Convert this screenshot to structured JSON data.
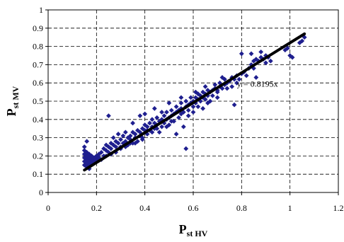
{
  "chart_data": {
    "type": "scatter",
    "xlabel": {
      "main": "P",
      "sub": "st HV"
    },
    "ylabel": {
      "main": "P",
      "sub": "st MV"
    },
    "xlim": [
      0,
      1.2
    ],
    "ylim": [
      0,
      1
    ],
    "x_ticks": [
      "0",
      "0.2",
      "0.4",
      "0.6",
      "0.8",
      "1",
      "1.2"
    ],
    "y_ticks": [
      "0",
      "0.1",
      "0.2",
      "0.3",
      "0.4",
      "0.5",
      "0.6",
      "0.7",
      "0.8",
      "0.9",
      "1"
    ],
    "grid": "dashed",
    "marker_color": "#1f1f8f",
    "trendline": {
      "label": "y = 0.8195x",
      "slope": 0.8195,
      "x_range": [
        0.15,
        1.06
      ],
      "color": "#000000"
    },
    "points": [
      [
        0.15,
        0.15
      ],
      [
        0.15,
        0.17
      ],
      [
        0.15,
        0.19
      ],
      [
        0.15,
        0.21
      ],
      [
        0.16,
        0.14
      ],
      [
        0.16,
        0.16
      ],
      [
        0.16,
        0.18
      ],
      [
        0.16,
        0.2
      ],
      [
        0.16,
        0.22
      ],
      [
        0.17,
        0.15
      ],
      [
        0.17,
        0.17
      ],
      [
        0.17,
        0.19
      ],
      [
        0.17,
        0.13
      ],
      [
        0.18,
        0.16
      ],
      [
        0.18,
        0.18
      ],
      [
        0.18,
        0.2
      ],
      [
        0.15,
        0.23
      ],
      [
        0.15,
        0.25
      ],
      [
        0.16,
        0.28
      ],
      [
        0.17,
        0.21
      ],
      [
        0.19,
        0.17
      ],
      [
        0.19,
        0.19
      ],
      [
        0.2,
        0.18
      ],
      [
        0.2,
        0.2
      ],
      [
        0.21,
        0.21
      ],
      [
        0.21,
        0.19
      ],
      [
        0.22,
        0.22
      ],
      [
        0.22,
        0.18
      ],
      [
        0.23,
        0.24
      ],
      [
        0.23,
        0.2
      ],
      [
        0.24,
        0.23
      ],
      [
        0.24,
        0.26
      ],
      [
        0.25,
        0.22
      ],
      [
        0.25,
        0.25
      ],
      [
        0.25,
        0.42
      ],
      [
        0.26,
        0.27
      ],
      [
        0.26,
        0.24
      ],
      [
        0.27,
        0.26
      ],
      [
        0.27,
        0.3
      ],
      [
        0.28,
        0.25
      ],
      [
        0.28,
        0.28
      ],
      [
        0.29,
        0.27
      ],
      [
        0.29,
        0.32
      ],
      [
        0.3,
        0.24
      ],
      [
        0.3,
        0.29
      ],
      [
        0.31,
        0.27
      ],
      [
        0.31,
        0.31
      ],
      [
        0.32,
        0.28
      ],
      [
        0.32,
        0.33
      ],
      [
        0.33,
        0.3
      ],
      [
        0.33,
        0.26
      ],
      [
        0.34,
        0.31
      ],
      [
        0.34,
        0.29
      ],
      [
        0.35,
        0.27
      ],
      [
        0.35,
        0.33
      ],
      [
        0.35,
        0.38
      ],
      [
        0.36,
        0.3
      ],
      [
        0.36,
        0.32
      ],
      [
        0.37,
        0.34
      ],
      [
        0.37,
        0.28
      ],
      [
        0.38,
        0.33
      ],
      [
        0.38,
        0.31
      ],
      [
        0.38,
        0.42
      ],
      [
        0.39,
        0.35
      ],
      [
        0.39,
        0.3
      ],
      [
        0.4,
        0.34
      ],
      [
        0.4,
        0.37
      ],
      [
        0.4,
        0.43
      ],
      [
        0.41,
        0.32
      ],
      [
        0.41,
        0.36
      ],
      [
        0.42,
        0.38
      ],
      [
        0.42,
        0.34
      ],
      [
        0.43,
        0.36
      ],
      [
        0.43,
        0.4
      ],
      [
        0.44,
        0.35
      ],
      [
        0.44,
        0.38
      ],
      [
        0.44,
        0.46
      ],
      [
        0.45,
        0.37
      ],
      [
        0.45,
        0.41
      ],
      [
        0.46,
        0.39
      ],
      [
        0.46,
        0.33
      ],
      [
        0.47,
        0.4
      ],
      [
        0.47,
        0.36
      ],
      [
        0.48,
        0.42
      ],
      [
        0.48,
        0.38
      ],
      [
        0.49,
        0.4
      ],
      [
        0.49,
        0.44
      ],
      [
        0.5,
        0.41
      ],
      [
        0.5,
        0.37
      ],
      [
        0.5,
        0.49
      ],
      [
        0.51,
        0.42
      ],
      [
        0.51,
        0.45
      ],
      [
        0.52,
        0.43
      ],
      [
        0.52,
        0.39
      ],
      [
        0.53,
        0.44
      ],
      [
        0.53,
        0.47
      ],
      [
        0.53,
        0.32
      ],
      [
        0.54,
        0.45
      ],
      [
        0.54,
        0.41
      ],
      [
        0.55,
        0.46
      ],
      [
        0.55,
        0.49
      ],
      [
        0.56,
        0.44
      ],
      [
        0.56,
        0.36
      ],
      [
        0.57,
        0.47
      ],
      [
        0.57,
        0.5
      ],
      [
        0.57,
        0.24
      ],
      [
        0.58,
        0.48
      ],
      [
        0.58,
        0.45
      ],
      [
        0.59,
        0.49
      ],
      [
        0.59,
        0.52
      ],
      [
        0.6,
        0.47
      ],
      [
        0.6,
        0.5
      ],
      [
        0.6,
        0.44
      ],
      [
        0.61,
        0.52
      ],
      [
        0.61,
        0.49
      ],
      [
        0.62,
        0.51
      ],
      [
        0.62,
        0.54
      ],
      [
        0.63,
        0.5
      ],
      [
        0.63,
        0.53
      ],
      [
        0.64,
        0.52
      ],
      [
        0.64,
        0.55
      ],
      [
        0.64,
        0.46
      ],
      [
        0.65,
        0.54
      ],
      [
        0.65,
        0.51
      ],
      [
        0.66,
        0.53
      ],
      [
        0.66,
        0.56
      ],
      [
        0.67,
        0.55
      ],
      [
        0.67,
        0.5
      ],
      [
        0.68,
        0.56
      ],
      [
        0.68,
        0.53
      ],
      [
        0.69,
        0.57
      ],
      [
        0.69,
        0.59
      ],
      [
        0.7,
        0.56
      ],
      [
        0.7,
        0.52
      ],
      [
        0.71,
        0.58
      ],
      [
        0.71,
        0.6
      ],
      [
        0.72,
        0.57
      ],
      [
        0.73,
        0.59
      ],
      [
        0.73,
        0.62
      ],
      [
        0.74,
        0.6
      ],
      [
        0.75,
        0.61
      ],
      [
        0.76,
        0.58
      ],
      [
        0.76,
        0.63
      ],
      [
        0.77,
        0.62
      ],
      [
        0.77,
        0.48
      ],
      [
        0.78,
        0.64
      ],
      [
        0.79,
        0.62
      ],
      [
        0.8,
        0.65
      ],
      [
        0.81,
        0.66
      ],
      [
        0.82,
        0.64
      ],
      [
        0.83,
        0.68
      ],
      [
        0.84,
        0.7
      ],
      [
        0.85,
        0.68
      ],
      [
        0.85,
        0.72
      ],
      [
        0.86,
        0.63
      ],
      [
        0.87,
        0.72
      ],
      [
        0.88,
        0.74
      ],
      [
        0.89,
        0.73
      ],
      [
        0.9,
        0.75
      ],
      [
        0.9,
        0.71
      ],
      [
        0.91,
        0.74
      ],
      [
        0.92,
        0.72
      ],
      [
        0.98,
        0.78
      ],
      [
        0.99,
        0.79
      ],
      [
        1,
        0.75
      ],
      [
        1.01,
        0.74
      ],
      [
        1.04,
        0.82
      ],
      [
        1.05,
        0.83
      ],
      [
        1.06,
        0.85
      ],
      [
        0.24,
        0.2
      ],
      [
        0.26,
        0.21
      ],
      [
        0.28,
        0.22
      ],
      [
        0.3,
        0.25
      ],
      [
        0.32,
        0.25
      ],
      [
        0.34,
        0.27
      ],
      [
        0.36,
        0.27
      ],
      [
        0.39,
        0.29
      ],
      [
        0.41,
        0.34
      ],
      [
        0.43,
        0.33
      ],
      [
        0.45,
        0.35
      ],
      [
        0.47,
        0.39
      ],
      [
        0.49,
        0.36
      ],
      [
        0.51,
        0.39
      ],
      [
        0.55,
        0.43
      ],
      [
        0.58,
        0.42
      ],
      [
        0.62,
        0.47
      ],
      [
        0.66,
        0.49
      ],
      [
        0.7,
        0.55
      ],
      [
        0.74,
        0.57
      ],
      [
        0.78,
        0.6
      ],
      [
        0.72,
        0.63
      ],
      [
        0.8,
        0.76
      ],
      [
        0.84,
        0.76
      ],
      [
        0.86,
        0.73
      ],
      [
        0.88,
        0.77
      ],
      [
        0.65,
        0.58
      ],
      [
        0.61,
        0.55
      ],
      [
        0.55,
        0.52
      ],
      [
        0.47,
        0.44
      ]
    ]
  }
}
